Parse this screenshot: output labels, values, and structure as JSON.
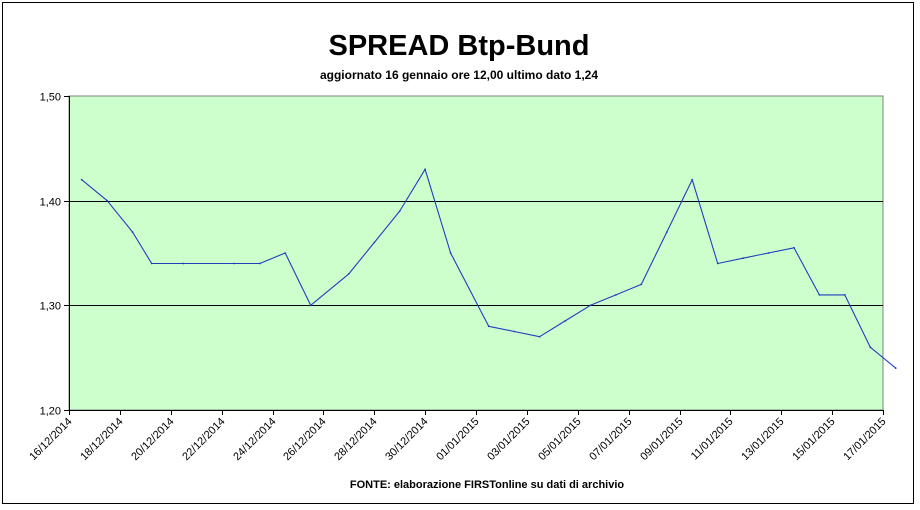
{
  "chart_data": {
    "type": "line",
    "title": "SPREAD Btp-Bund",
    "subtitle": "aggiornato 16 gennaio ore 12,00  ultimo dato  1,24",
    "source": "FONTE: elaborazione FIRSTonline su dati di archivio",
    "xlabel": "",
    "ylabel": "",
    "ylim": [
      1.2,
      1.5
    ],
    "xlim": [
      "2014-12-16",
      "2015-01-17"
    ],
    "grid": {
      "horizontal": true,
      "vertical": false
    },
    "background_color": "#ccffcc",
    "line_color": "#1f3fbf",
    "y_ticks": [
      {
        "value": 1.2,
        "label": "1,20"
      },
      {
        "value": 1.3,
        "label": "1,30"
      },
      {
        "value": 1.4,
        "label": "1,40"
      },
      {
        "value": 1.5,
        "label": "1,50"
      }
    ],
    "x_ticks": [
      {
        "date": "2014-12-16",
        "label": "16/12/2014"
      },
      {
        "date": "2014-12-18",
        "label": "18/12/2014"
      },
      {
        "date": "2014-12-20",
        "label": "20/12/2014"
      },
      {
        "date": "2014-12-22",
        "label": "22/12/2014"
      },
      {
        "date": "2014-12-24",
        "label": "24/12/2014"
      },
      {
        "date": "2014-12-26",
        "label": "26/12/2014"
      },
      {
        "date": "2014-12-28",
        "label": "28/12/2014"
      },
      {
        "date": "2014-12-30",
        "label": "30/12/2014"
      },
      {
        "date": "2015-01-01",
        "label": "01/01/2015"
      },
      {
        "date": "2015-01-03",
        "label": "03/01/2015"
      },
      {
        "date": "2015-01-05",
        "label": "05/01/2015"
      },
      {
        "date": "2015-01-07",
        "label": "07/01/2015"
      },
      {
        "date": "2015-01-09",
        "label": "09/01/2015"
      },
      {
        "date": "2015-01-11",
        "label": "11/01/2015"
      },
      {
        "date": "2015-01-13",
        "label": "13/01/2015"
      },
      {
        "date": "2015-01-15",
        "label": "15/01/2015"
      },
      {
        "date": "2015-01-17",
        "label": "17/01/2015"
      }
    ],
    "series": [
      {
        "points": [
          {
            "x": "2014-12-16 12:00",
            "y": 1.42
          },
          {
            "x": "2014-12-17 12:00",
            "y": 1.4
          },
          {
            "x": "2014-12-18 12:00",
            "y": 1.37
          },
          {
            "x": "2014-12-19 06:00",
            "y": 1.34
          },
          {
            "x": "2014-12-20 12:00",
            "y": 1.34
          },
          {
            "x": "2014-12-22 12:00",
            "y": 1.34
          },
          {
            "x": "2014-12-23 12:00",
            "y": 1.34
          },
          {
            "x": "2014-12-24 12:00",
            "y": 1.35
          },
          {
            "x": "2014-12-25 12:00",
            "y": 1.3
          },
          {
            "x": "2014-12-27 00:00",
            "y": 1.33
          },
          {
            "x": "2014-12-28 00:00",
            "y": 1.36
          },
          {
            "x": "2014-12-29 00:00",
            "y": 1.39
          },
          {
            "x": "2014-12-30 00:00",
            "y": 1.43
          },
          {
            "x": "2014-12-31 00:00",
            "y": 1.35
          },
          {
            "x": "2015-01-01 12:00",
            "y": 1.28
          },
          {
            "x": "2015-01-02 12:00",
            "y": 1.275
          },
          {
            "x": "2015-01-03 12:00",
            "y": 1.27
          },
          {
            "x": "2015-01-04 12:00",
            "y": 1.285
          },
          {
            "x": "2015-01-05 12:00",
            "y": 1.3
          },
          {
            "x": "2015-01-06 12:00",
            "y": 1.31
          },
          {
            "x": "2015-01-07 12:00",
            "y": 1.32
          },
          {
            "x": "2015-01-08 12:00",
            "y": 1.37
          },
          {
            "x": "2015-01-09 12:00",
            "y": 1.42
          },
          {
            "x": "2015-01-10 12:00",
            "y": 1.34
          },
          {
            "x": "2015-01-11 12:00",
            "y": 1.345
          },
          {
            "x": "2015-01-12 12:00",
            "y": 1.35
          },
          {
            "x": "2015-01-13 12:00",
            "y": 1.355
          },
          {
            "x": "2015-01-14 12:00",
            "y": 1.31
          },
          {
            "x": "2015-01-15 12:00",
            "y": 1.31
          },
          {
            "x": "2015-01-16 12:00",
            "y": 1.26
          },
          {
            "x": "2015-01-17 12:00",
            "y": 1.24
          }
        ]
      }
    ]
  }
}
